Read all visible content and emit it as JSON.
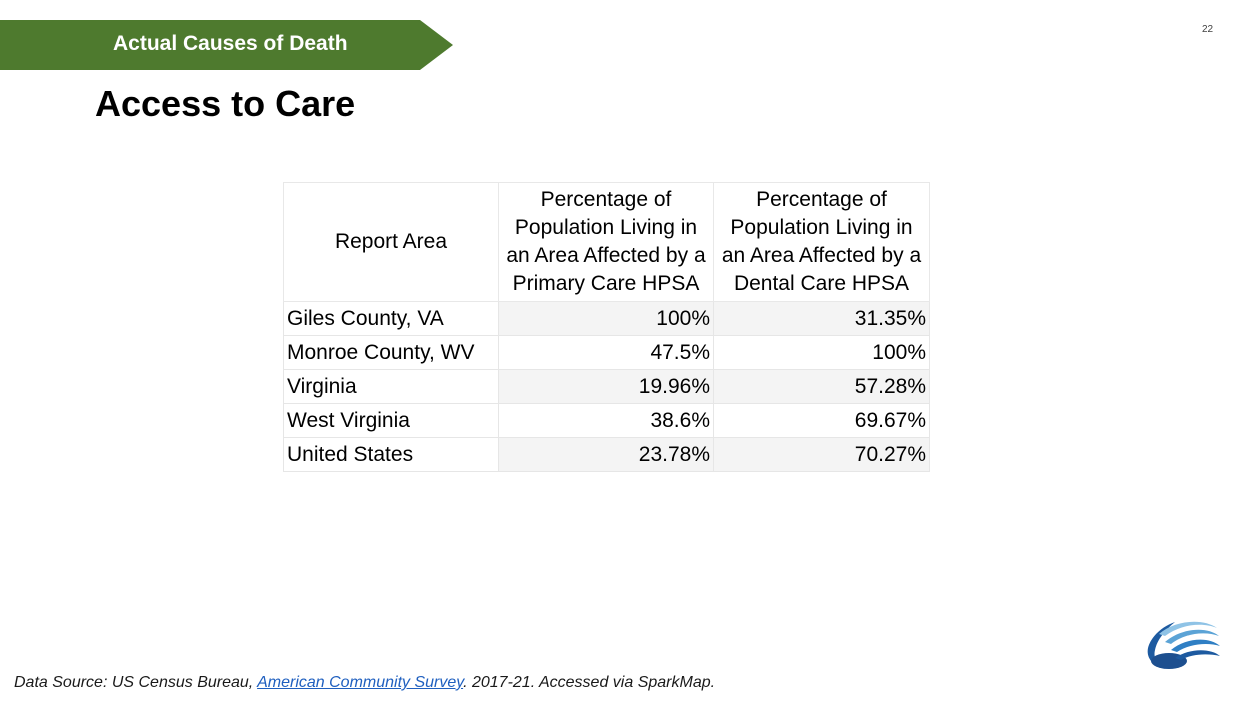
{
  "banner": {
    "label": "Actual Causes of Death",
    "color": "#4e7a2e"
  },
  "page_number": "22",
  "title": "Access to Care",
  "table": {
    "headers": [
      "Report Area",
      "Percentage of Population Living in an Area Affected by a Primary Care HPSA",
      "Percentage of Population Living in an Area Affected by a Dental Care HPSA"
    ],
    "rows": [
      {
        "area": "Giles County, VA",
        "primary": "100%",
        "dental": "31.35%"
      },
      {
        "area": "Monroe County, WV",
        "primary": "47.5%",
        "dental": "100%"
      },
      {
        "area": "Virginia",
        "primary": "19.96%",
        "dental": "57.28%"
      },
      {
        "area": "West Virginia",
        "primary": "38.6%",
        "dental": "69.67%"
      },
      {
        "area": "United States",
        "primary": "23.78%",
        "dental": "70.27%"
      }
    ]
  },
  "source": {
    "prefix": "Data Source: US Census Bureau, ",
    "link_text": "American Community Survey",
    "suffix": ". 2017-21. Accessed via SparkMap."
  },
  "logo": {
    "icon": "organization-logo-icon",
    "color": "#1d5aa0"
  }
}
